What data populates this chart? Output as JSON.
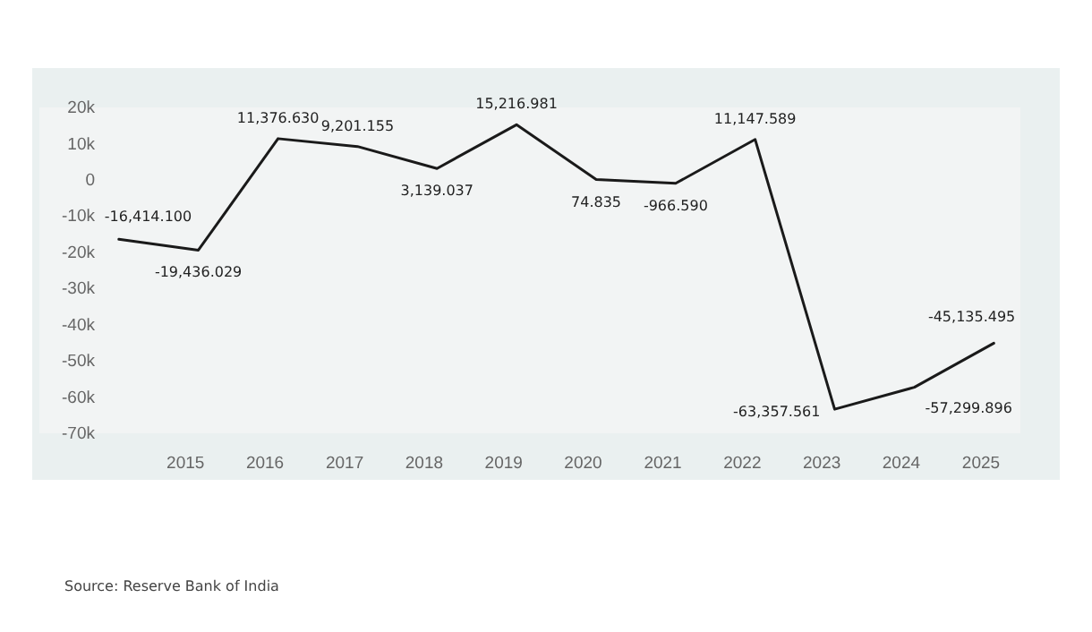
{
  "chart_data": {
    "type": "line",
    "x": [
      "2014-03",
      "2015-03",
      "2016-03",
      "2017-03",
      "2018-03",
      "2019-03",
      "2020-03",
      "2021-03",
      "2022-03",
      "2023-03",
      "2024-03",
      "2025-03"
    ],
    "series": [
      {
        "color": "#1a1a1a",
        "values": [
          -16414.1,
          -19436.029,
          11376.63,
          9201.155,
          3139.037,
          15216.981,
          74.835,
          -966.59,
          11147.589,
          -63357.561,
          -57299.896,
          -45135.495
        ],
        "value_labels": [
          "-16,414.100",
          "-19,436.029",
          "11,376.630",
          "9,201.155",
          "3,139.037",
          "15,216.981",
          "74.835",
          "-966.590",
          "11,147.589",
          "-63,357.561",
          "-57,299.896",
          "-45,135.495"
        ]
      }
    ],
    "xticks": [
      {
        "value": "2015",
        "label": "2015"
      },
      {
        "value": "2016",
        "label": "2016"
      },
      {
        "value": "2017",
        "label": "2017"
      },
      {
        "value": "2018",
        "label": "2018"
      },
      {
        "value": "2019",
        "label": "2019"
      },
      {
        "value": "2020",
        "label": "2020"
      },
      {
        "value": "2021",
        "label": "2021"
      },
      {
        "value": "2022",
        "label": "2022"
      },
      {
        "value": "2023",
        "label": "2023"
      },
      {
        "value": "2024",
        "label": "2024"
      },
      {
        "value": "2025",
        "label": "2025"
      }
    ],
    "ylim": [
      -70000,
      20000
    ],
    "yticks": [
      {
        "value": 20000,
        "label": "20k"
      },
      {
        "value": 10000,
        "label": "10k"
      },
      {
        "value": 0,
        "label": "0"
      },
      {
        "value": -10000,
        "label": "-10k"
      },
      {
        "value": -20000,
        "label": "-20k"
      },
      {
        "value": -30000,
        "label": "-30k"
      },
      {
        "value": -40000,
        "label": "-40k"
      },
      {
        "value": -50000,
        "label": "-50k"
      },
      {
        "value": -60000,
        "label": "-60k"
      },
      {
        "value": -70000,
        "label": "-70k"
      }
    ],
    "xlim": [
      "2013-03",
      "2025-07"
    ],
    "grid": false,
    "annotations": [
      "Source: Reserve Bank of India"
    ]
  }
}
